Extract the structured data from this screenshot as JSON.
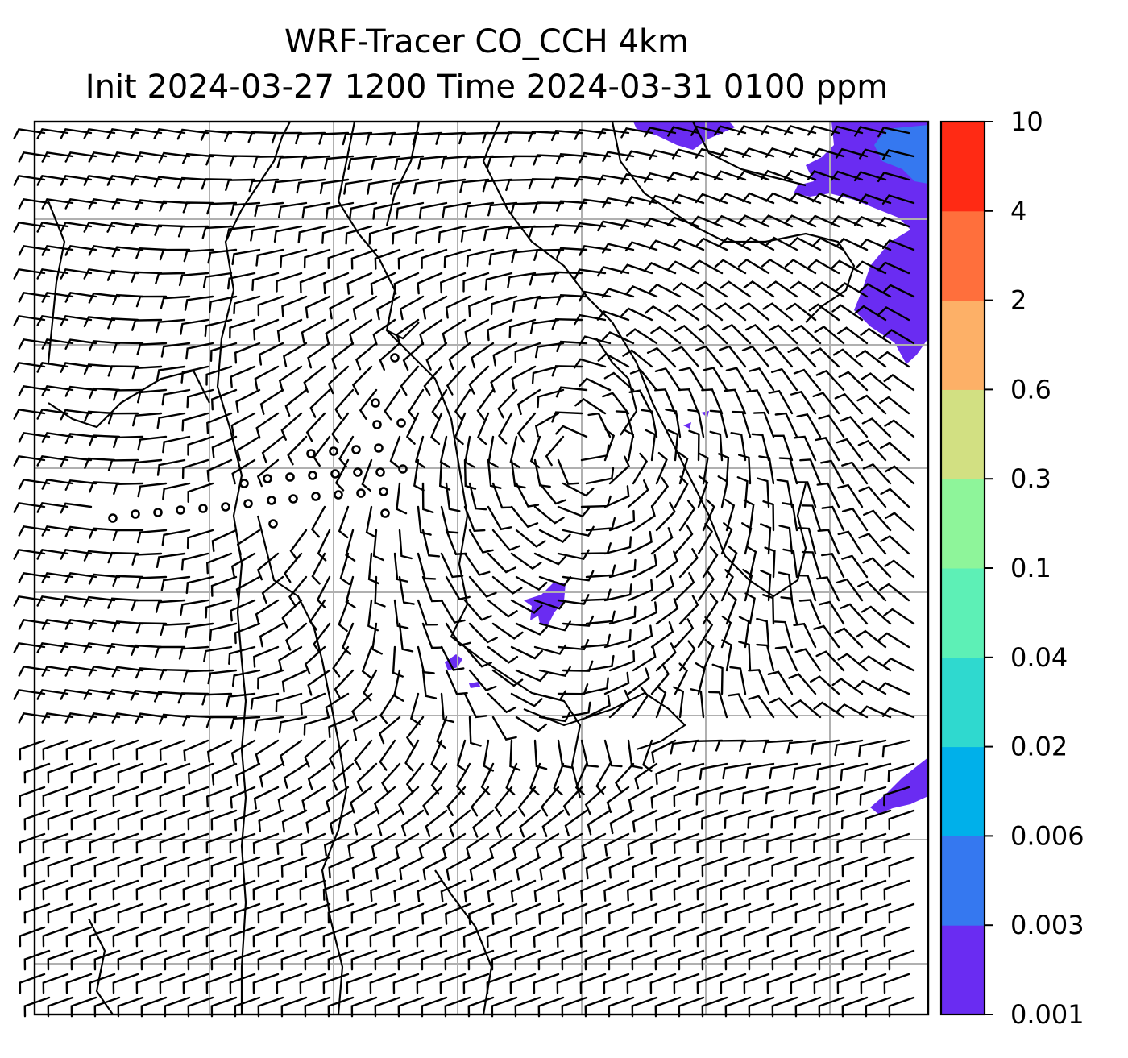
{
  "title": {
    "line1": "WRF-Tracer CO_CCH 4km",
    "line2": "Init 2024-03-27 1200 Time 2024-03-31 0100 ppm"
  },
  "colorbar": {
    "levels": [
      "0.001",
      "0.003",
      "0.006",
      "0.02",
      "0.04",
      "0.1",
      "0.3",
      "0.6",
      "2",
      "4",
      "10"
    ],
    "colors": [
      "#6a2cf2",
      "#3578f0",
      "#00b0ea",
      "#2fd9cf",
      "#5df0b6",
      "#8ef59a",
      "#d2e082",
      "#fdb067",
      "#ff6f3c",
      "#ff2a14"
    ]
  },
  "map": {
    "gridlines": "on",
    "wind_barbs": "on",
    "calm_markers": "circles",
    "tracer_fill_color": "#6a2cf2"
  }
}
